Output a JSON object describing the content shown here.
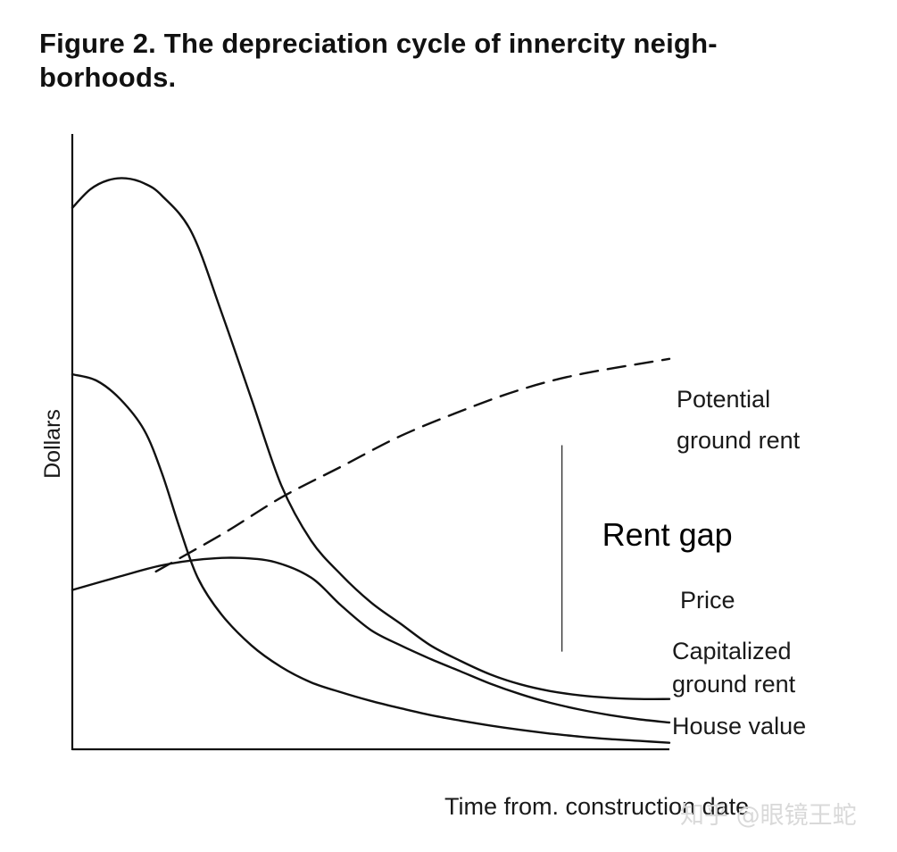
{
  "chart_data": {
    "type": "line",
    "title": "Figure 2. The depreciation cycle of innercity neigh-borhoods.",
    "title_lines": [
      "Figure 2. The depreciation cycle of innercity neigh-",
      "borhoods."
    ],
    "xlabel": "Time from. construction date",
    "ylabel": "Dollars",
    "x_range": [
      0,
      100
    ],
    "y_range": [
      0,
      100
    ],
    "ticks": "none",
    "grid": false,
    "series": [
      {
        "name": "Potential ground rent",
        "label_lines": [
          "Potential",
          "ground rent"
        ],
        "style": "dashed",
        "x": [
          14,
          25,
          35,
          45,
          55,
          65,
          75,
          85,
          100
        ],
        "y": [
          29,
          35,
          41,
          46,
          51,
          55,
          58.5,
          61,
          63.5
        ]
      },
      {
        "name": "Price",
        "label_lines": [
          "Price"
        ],
        "style": "solid",
        "x": [
          0,
          3,
          6,
          9,
          12,
          15,
          20,
          25,
          30,
          35,
          40,
          45,
          50,
          55,
          60,
          65,
          70,
          75,
          80,
          85,
          90,
          95,
          100
        ],
        "y": [
          88,
          91,
          92.5,
          92.8,
          92,
          90,
          84,
          71,
          57,
          43,
          34,
          28.5,
          24,
          20.5,
          17,
          14.5,
          12.3,
          10.7,
          9.6,
          8.9,
          8.5,
          8.3,
          8.3
        ]
      },
      {
        "name": "Capitalized ground rent",
        "label_lines": [
          "Capitalized",
          "ground rent"
        ],
        "style": "solid",
        "x": [
          0,
          8,
          15,
          22,
          28,
          34,
          40,
          45,
          50,
          55,
          60,
          65,
          70,
          75,
          80,
          85,
          90,
          95,
          100
        ],
        "y": [
          26,
          28.2,
          30,
          31,
          31.2,
          30.5,
          28,
          23.5,
          19.5,
          17,
          14.8,
          12.8,
          10.8,
          9.1,
          7.7,
          6.6,
          5.7,
          5,
          4.5
        ]
      },
      {
        "name": "House value",
        "label_lines": [
          "House value"
        ],
        "style": "solid",
        "x": [
          0,
          4,
          8,
          12,
          15,
          18,
          21,
          25,
          30,
          35,
          40,
          45,
          50,
          55,
          60,
          65,
          70,
          75,
          80,
          85,
          90,
          95,
          100
        ],
        "y": [
          61,
          60,
          57,
          52,
          45,
          36,
          28,
          22,
          17,
          13.5,
          11,
          9.4,
          8,
          6.8,
          5.7,
          4.8,
          4,
          3.3,
          2.7,
          2.2,
          1.8,
          1.5,
          1.2
        ]
      }
    ],
    "annotations": [
      {
        "text": "Rent gap",
        "x": 82,
        "y_top": 49.5,
        "y_bottom": 16
      }
    ]
  },
  "watermark": "知乎 @眼镜王蛇"
}
